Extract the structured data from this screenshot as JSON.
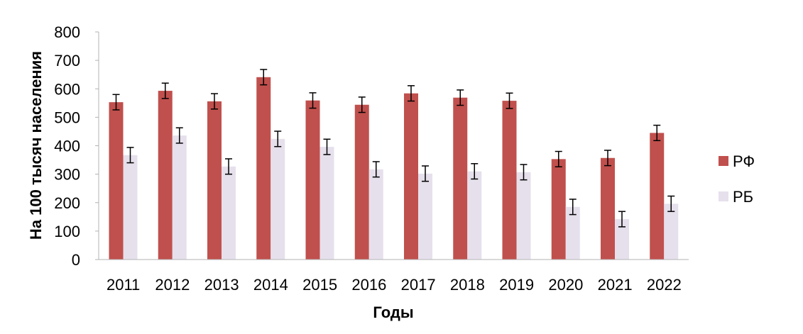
{
  "chart_data": {
    "type": "bar",
    "title": "",
    "xlabel": "Годы",
    "ylabel": "На 100 тысяч населения",
    "ylim": [
      0,
      800
    ],
    "yticks": [
      0,
      100,
      200,
      300,
      400,
      500,
      600,
      700,
      800
    ],
    "grid": false,
    "legend_position": "right",
    "error_bars": true,
    "categories": [
      "2011",
      "2012",
      "2013",
      "2014",
      "2015",
      "2016",
      "2017",
      "2018",
      "2019",
      "2020",
      "2021",
      "2022"
    ],
    "series": [
      {
        "name": "РФ",
        "color": "#C0504D",
        "values": [
          553,
          593,
          556,
          641,
          559,
          544,
          584,
          569,
          558,
          353,
          357,
          445
        ],
        "error": [
          27,
          27,
          27,
          27,
          27,
          27,
          27,
          27,
          27,
          27,
          27,
          27
        ]
      },
      {
        "name": "РБ",
        "color": "#E6E0EC",
        "values": [
          367,
          436,
          327,
          424,
          396,
          317,
          302,
          310,
          307,
          185,
          142,
          196
        ],
        "error": [
          27,
          27,
          27,
          27,
          27,
          27,
          27,
          27,
          27,
          27,
          27,
          27
        ]
      }
    ]
  }
}
